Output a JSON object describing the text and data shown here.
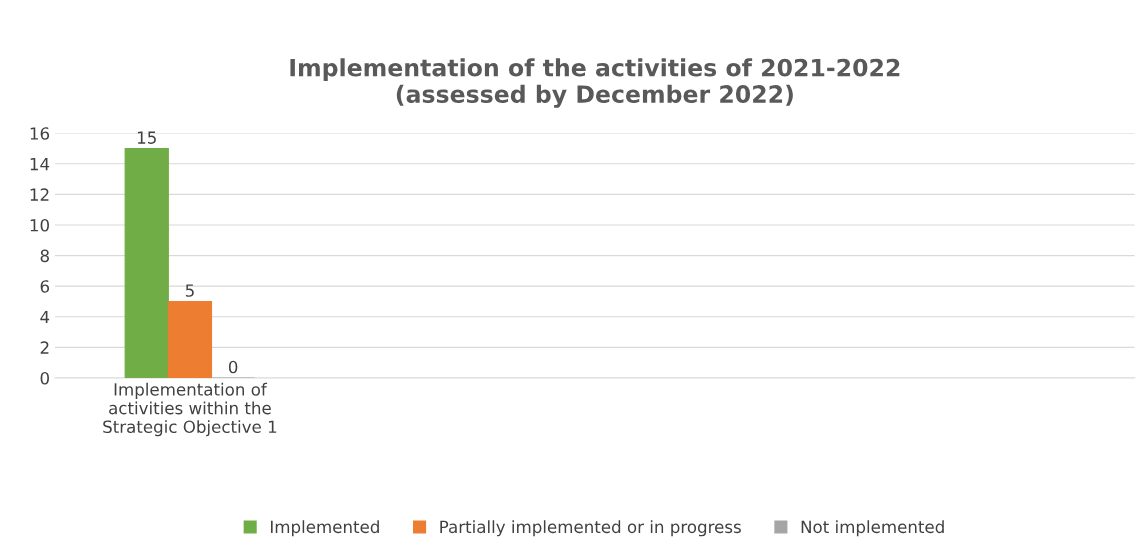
{
  "chart_data": {
    "type": "bar",
    "title": "Implementation of the activities of 2021-2022\n(assessed by December 2022)",
    "categories": [
      "Implementation of\nactivities within the\nStrategic Objective 1",
      null,
      null,
      null
    ],
    "series": [
      {
        "name": "Implemented",
        "color": "#70ad47",
        "values": [
          15,
          null,
          null,
          null
        ]
      },
      {
        "name": "Partially implemented or in progress",
        "color": "#ed7d31",
        "values": [
          5,
          null,
          null,
          null
        ]
      },
      {
        "name": "Not implemented",
        "color": "#a5a5a5",
        "values": [
          0,
          null,
          null,
          null
        ]
      }
    ],
    "ylim": [
      0,
      16
    ],
    "yticks": [
      0,
      2,
      4,
      6,
      8,
      10,
      12,
      14,
      16
    ],
    "grid": "y",
    "legend": "bottom",
    "data_labels": true
  }
}
